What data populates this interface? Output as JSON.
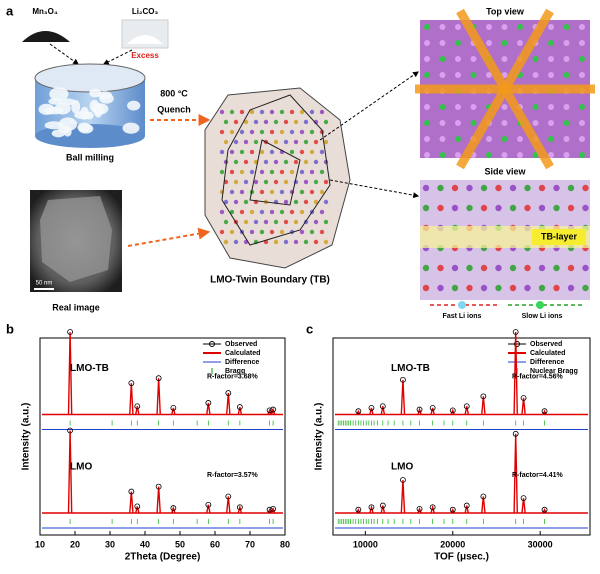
{
  "panel_a": {
    "label": "a",
    "precursor_1": "Mn₃O₄",
    "precursor_2": "Li₂CO₃",
    "excess": "Excess",
    "milling": "Ball milling",
    "temperature": "800 °C",
    "quench": "Quench",
    "scale_bar": "50 nm",
    "real_image": "Real image",
    "structure": "LMO-Twin Boundary (TB)",
    "top_view": "Top view",
    "side_view": "Side view",
    "tb_layer": "TB-layer",
    "fast_ions": "Fast Li ions",
    "slow_ions": "Slow Li ions"
  },
  "chart_data": [
    {
      "type": "line",
      "panel_label": "b",
      "xlabel": "2Theta (Degree)",
      "ylabel": "Intensity (a.u.)",
      "xlim": [
        10,
        80
      ],
      "xticks": [
        10,
        20,
        30,
        40,
        50,
        60,
        70,
        80
      ],
      "ylim": [
        0,
        100
      ],
      "series": [
        {
          "name": "Observed",
          "color": "#000000"
        },
        {
          "name": "Calculated",
          "color": "#e00000"
        },
        {
          "name": "Difference",
          "color": "#1f3fcf"
        },
        {
          "name": "Bragg",
          "color": "#2db82d"
        }
      ],
      "patterns": [
        {
          "name": "LMO-TB",
          "annotation": "R-factor=3.68%",
          "x": [
            18.6,
            36.1,
            37.8,
            43.9,
            48.1,
            58.1,
            63.8,
            67.1,
            75.6,
            76.6
          ],
          "values": [
            100,
            38,
            10,
            44,
            8,
            14,
            26,
            9,
            5,
            6
          ],
          "bragg": [
            18.6,
            30.6,
            36.1,
            37.8,
            43.9,
            48.1,
            54.9,
            58.1,
            63.8,
            67.1,
            75.6,
            76.6
          ]
        },
        {
          "name": "LMO",
          "annotation": "R-factor=3.57%",
          "x": [
            18.6,
            36.1,
            37.8,
            43.9,
            48.1,
            58.1,
            63.8,
            67.1,
            75.6,
            76.6
          ],
          "values": [
            100,
            26,
            8,
            32,
            6,
            10,
            20,
            7,
            4,
            5
          ],
          "bragg": [
            18.6,
            30.6,
            36.1,
            37.8,
            43.9,
            48.1,
            54.9,
            58.1,
            63.8,
            67.1,
            75.6,
            76.6
          ]
        }
      ]
    },
    {
      "type": "line",
      "panel_label": "c",
      "xlabel": "TOF (μsec.)",
      "ylabel": "Intensity (a.u.)",
      "xlim": [
        6300,
        35700
      ],
      "xticks": [
        10000,
        20000,
        30000
      ],
      "ylim": [
        0,
        100
      ],
      "series": [
        {
          "name": "Observed",
          "color": "#000000"
        },
        {
          "name": "Calculated",
          "color": "#e00000"
        },
        {
          "name": "Difference",
          "color": "#1f3fcf"
        },
        {
          "name": "Nuclear Bragg",
          "color": "#2db82d"
        }
      ],
      "patterns": [
        {
          "name": "LMO-TB",
          "annotation": "R-factor=4.56%",
          "x": [
            9200,
            10700,
            12000,
            14300,
            16200,
            17700,
            20000,
            21600,
            23500,
            27200,
            28100,
            30500
          ],
          "values": [
            4,
            8,
            10,
            42,
            6,
            8,
            5,
            10,
            22,
            100,
            20,
            4
          ],
          "bragg": [
            6900,
            7100,
            7300,
            7500,
            7700,
            7900,
            8100,
            8300,
            8600,
            8900,
            9200,
            9500,
            9800,
            10100,
            10400,
            10700,
            11000,
            11400,
            12000,
            12600,
            13300,
            14300,
            15200,
            16200,
            17700,
            19000,
            20000,
            21600,
            23500,
            27200,
            28100,
            30500
          ]
        },
        {
          "name": "LMO",
          "annotation": "R-factor=4.41%",
          "x": [
            9200,
            10700,
            12000,
            14300,
            16200,
            17700,
            20000,
            21600,
            23500,
            27200,
            28100,
            30500
          ],
          "values": [
            4,
            7,
            9,
            40,
            5,
            7,
            4,
            9,
            20,
            96,
            18,
            4
          ],
          "bragg": [
            6900,
            7100,
            7300,
            7500,
            7700,
            7900,
            8100,
            8300,
            8600,
            8900,
            9200,
            9500,
            9800,
            10100,
            10400,
            10700,
            11000,
            11400,
            12000,
            12600,
            13300,
            14300,
            15200,
            16200,
            17700,
            19000,
            20000,
            21600,
            23500,
            27200,
            28100,
            30500
          ]
        }
      ]
    }
  ]
}
